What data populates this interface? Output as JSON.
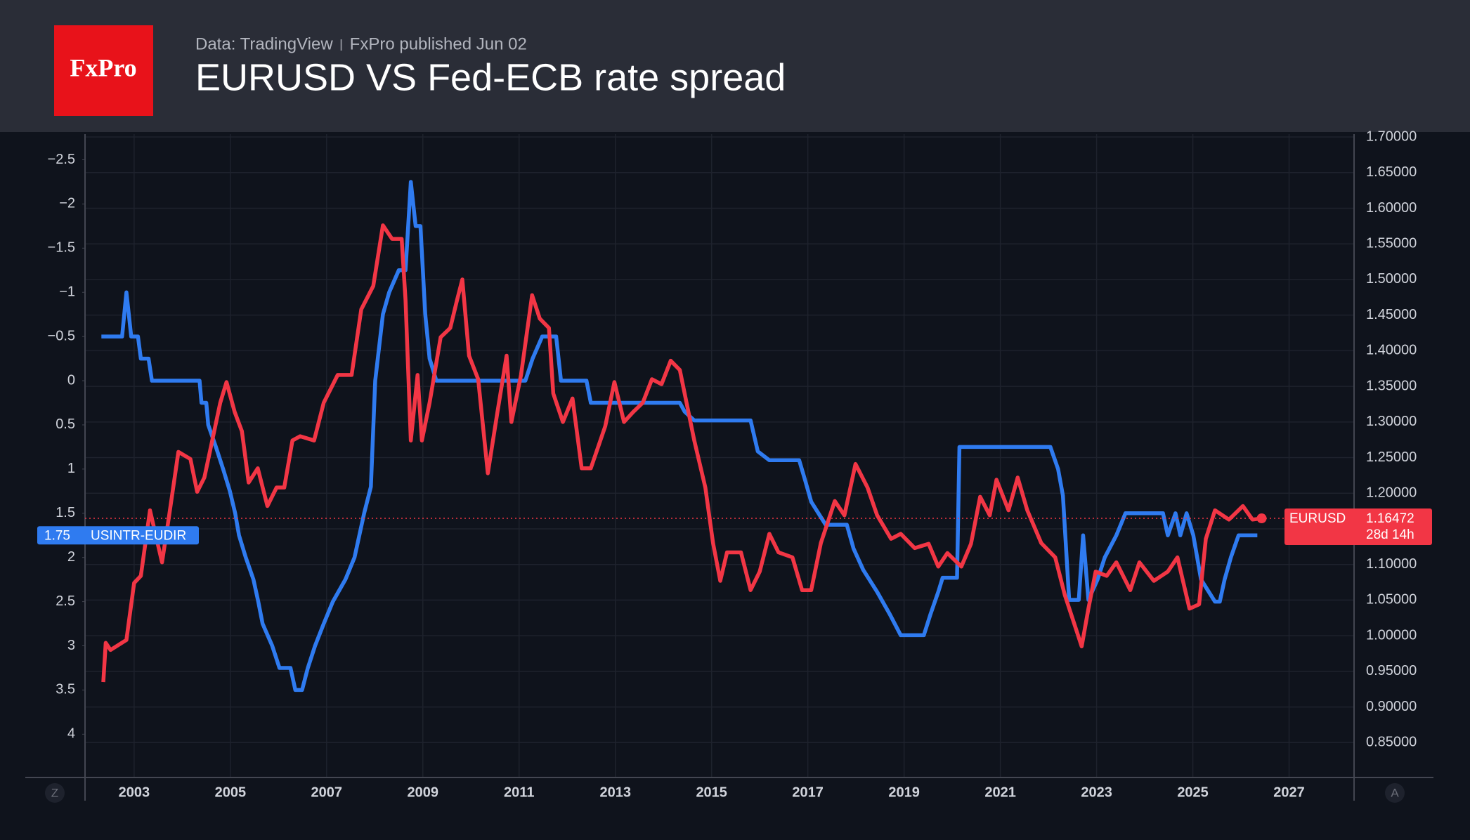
{
  "chart_data": {
    "type": "line",
    "title": "EURUSD VS Fed-ECB rate spread",
    "source": "Data: TradingView",
    "published": "FxPro published Jun 02",
    "logo": "FxPro",
    "axis_buttons": [
      "Z",
      "A"
    ],
    "countdown": "28d 14h",
    "grid": true,
    "xlim": [
      2001.98,
      2028.35
    ],
    "xticks": [
      2003,
      2005,
      2007,
      2009,
      2011,
      2013,
      2015,
      2017,
      2019,
      2021,
      2023,
      2025,
      2027
    ],
    "ylim": [
      4.49,
      -2.79
    ],
    "yticks": [
      {
        "value": -2.5,
        "label": "−2.5"
      },
      {
        "value": -2,
        "label": "−2"
      },
      {
        "value": -1.5,
        "label": "−1.5"
      },
      {
        "value": -1,
        "label": "−1"
      },
      {
        "value": -0.5,
        "label": "−0.5"
      },
      0,
      0.5,
      1,
      1.5,
      2,
      2.5,
      3,
      3.5,
      4
    ],
    "y2lim": [
      0.801,
      1.704
    ],
    "y2ticks": [
      {
        "value": 1.7,
        "label": "1.70000"
      },
      {
        "value": 1.65,
        "label": "1.65000"
      },
      {
        "value": 1.6,
        "label": "1.60000"
      },
      {
        "value": 1.55,
        "label": "1.55000"
      },
      {
        "value": 1.5,
        "label": "1.50000"
      },
      {
        "value": 1.45,
        "label": "1.45000"
      },
      {
        "value": 1.4,
        "label": "1.40000"
      },
      {
        "value": 1.35,
        "label": "1.35000"
      },
      {
        "value": 1.3,
        "label": "1.30000"
      },
      {
        "value": 1.25,
        "label": "1.25000"
      },
      {
        "value": 1.2,
        "label": "1.20000"
      },
      {
        "value": 1.15,
        "label": "1.15000"
      },
      {
        "value": 1.1,
        "label": "1.10000"
      },
      {
        "value": 1.05,
        "label": "1.05000"
      },
      {
        "value": 1.0,
        "label": "1.00000"
      },
      {
        "value": 0.95,
        "label": "0.95000"
      },
      {
        "value": 0.9,
        "label": "0.90000"
      },
      {
        "value": 0.85,
        "label": "0.85000"
      }
    ],
    "series": [
      {
        "name": "USINTR-EUDIR",
        "color": "#2f7bf0",
        "axis": "y",
        "x": [
          2002.32,
          2002.75,
          2002.84,
          2002.94,
          2003.08,
          2003.14,
          2003.3,
          2003.37,
          2004.36,
          2004.4,
          2004.5,
          2004.54,
          2004.7,
          2004.85,
          2004.99,
          2005.1,
          2005.18,
          2005.32,
          2005.48,
          2005.58,
          2005.67,
          2005.87,
          2006.02,
          2006.25,
          2006.35,
          2006.49,
          2006.61,
          2006.76,
          2006.94,
          2007.13,
          2007.39,
          2007.58,
          2007.78,
          2007.92,
          2008.01,
          2008.17,
          2008.3,
          2008.5,
          2008.64,
          2008.75,
          2008.85,
          2008.95,
          2009.05,
          2009.14,
          2009.28,
          2011.13,
          2011.28,
          2011.48,
          2011.77,
          2011.87,
          2012.4,
          2012.49,
          2014.34,
          2014.44,
          2014.64,
          2015.81,
          2015.96,
          2016.2,
          2016.82,
          2016.94,
          2017.07,
          2017.37,
          2017.81,
          2017.95,
          2018.15,
          2018.44,
          2018.7,
          2018.93,
          2019.41,
          2019.55,
          2019.71,
          2019.8,
          2020.1,
          2020.15,
          2022.04,
          2022.2,
          2022.3,
          2022.43,
          2022.63,
          2022.72,
          2022.83,
          2023.02,
          2023.17,
          2023.41,
          2023.6,
          2024.38,
          2024.48,
          2024.64,
          2024.74,
          2024.87,
          2025.01,
          2025.17,
          2025.46,
          2025.56,
          2025.66,
          2025.79,
          2025.95,
          2026.34
        ],
        "values": [
          -0.5,
          -0.5,
          -1,
          -0.5,
          -0.5,
          -0.25,
          -0.25,
          0,
          0,
          0.25,
          0.25,
          0.5,
          0.75,
          1,
          1.25,
          1.5,
          1.75,
          2,
          2.25,
          2.5,
          2.75,
          3,
          3.25,
          3.25,
          3.5,
          3.5,
          3.25,
          3,
          2.75,
          2.5,
          2.25,
          2,
          1.5,
          1.2,
          0,
          -0.75,
          -1,
          -1.25,
          -1.25,
          -2.25,
          -1.75,
          -1.75,
          -0.75,
          -0.25,
          0,
          0,
          -0.25,
          -0.5,
          -0.5,
          0,
          0,
          0.25,
          0.25,
          0.35,
          0.45,
          0.45,
          0.8,
          0.9,
          0.9,
          1.12,
          1.37,
          1.63,
          1.63,
          1.9,
          2.14,
          2.39,
          2.64,
          2.88,
          2.88,
          2.64,
          2.39,
          2.23,
          2.23,
          0.75,
          0.75,
          1,
          1.3,
          2.48,
          2.48,
          1.75,
          2.48,
          2.25,
          2,
          1.75,
          1.5,
          1.5,
          1.75,
          1.5,
          1.75,
          1.5,
          1.75,
          2.25,
          2.5,
          2.5,
          2.25,
          2,
          1.75,
          1.75
        ]
      },
      {
        "name": "EURUSD",
        "color": "#f23645",
        "axis": "y2",
        "x": [
          2002.36,
          2002.41,
          2002.51,
          2002.84,
          2003.0,
          2003.14,
          2003.33,
          2003.58,
          2003.72,
          2003.92,
          2004.17,
          2004.31,
          2004.46,
          2004.79,
          2004.92,
          2005.09,
          2005.24,
          2005.38,
          2005.57,
          2005.77,
          2005.96,
          2006.12,
          2006.29,
          2006.45,
          2006.74,
          2006.94,
          2007.23,
          2007.52,
          2007.72,
          2007.97,
          2008.17,
          2008.36,
          2008.56,
          2008.64,
          2008.75,
          2008.89,
          2008.98,
          2009.14,
          2009.37,
          2009.57,
          2009.71,
          2009.82,
          2009.96,
          2010.15,
          2010.35,
          2010.55,
          2010.74,
          2010.84,
          2011.04,
          2011.27,
          2011.43,
          2011.62,
          2011.71,
          2011.91,
          2012.11,
          2012.3,
          2012.49,
          2012.79,
          2012.98,
          2013.18,
          2013.37,
          2013.57,
          2013.76,
          2013.96,
          2014.15,
          2014.34,
          2014.64,
          2014.87,
          2015.03,
          2015.18,
          2015.32,
          2015.61,
          2015.81,
          2016.0,
          2016.2,
          2016.39,
          2016.68,
          2016.88,
          2017.07,
          2017.27,
          2017.56,
          2017.76,
          2017.99,
          2018.24,
          2018.44,
          2018.73,
          2018.93,
          2019.22,
          2019.51,
          2019.71,
          2019.9,
          2020.19,
          2020.39,
          2020.58,
          2020.78,
          2020.92,
          2021.17,
          2021.36,
          2021.56,
          2021.85,
          2022.14,
          2022.34,
          2022.53,
          2022.69,
          2022.83,
          2022.98,
          2023.21,
          2023.41,
          2023.7,
          2023.89,
          2024.19,
          2024.48,
          2024.68,
          2024.93,
          2025.13,
          2025.27,
          2025.46,
          2025.75,
          2026.04,
          2026.24,
          2026.43
        ],
        "values": [
          0.935,
          0.99,
          0.98,
          0.994,
          1.074,
          1.084,
          1.176,
          1.103,
          1.165,
          1.258,
          1.248,
          1.202,
          1.222,
          1.327,
          1.356,
          1.314,
          1.287,
          1.215,
          1.235,
          1.182,
          1.208,
          1.208,
          1.274,
          1.28,
          1.274,
          1.327,
          1.366,
          1.366,
          1.458,
          1.491,
          1.576,
          1.557,
          1.557,
          1.471,
          1.274,
          1.366,
          1.274,
          1.327,
          1.419,
          1.432,
          1.471,
          1.5,
          1.393,
          1.36,
          1.228,
          1.314,
          1.393,
          1.3,
          1.366,
          1.478,
          1.445,
          1.432,
          1.34,
          1.3,
          1.333,
          1.235,
          1.235,
          1.294,
          1.356,
          1.3,
          1.314,
          1.327,
          1.36,
          1.353,
          1.386,
          1.373,
          1.274,
          1.208,
          1.13,
          1.077,
          1.117,
          1.117,
          1.064,
          1.09,
          1.143,
          1.117,
          1.11,
          1.064,
          1.064,
          1.13,
          1.189,
          1.169,
          1.241,
          1.208,
          1.169,
          1.136,
          1.143,
          1.123,
          1.129,
          1.097,
          1.116,
          1.097,
          1.129,
          1.195,
          1.169,
          1.219,
          1.176,
          1.222,
          1.176,
          1.13,
          1.11,
          1.057,
          1.018,
          0.985,
          1.038,
          1.09,
          1.084,
          1.103,
          1.064,
          1.103,
          1.077,
          1.09,
          1.11,
          1.038,
          1.044,
          1.136,
          1.176,
          1.163,
          1.182,
          1.163,
          1.16472
        ]
      }
    ]
  }
}
